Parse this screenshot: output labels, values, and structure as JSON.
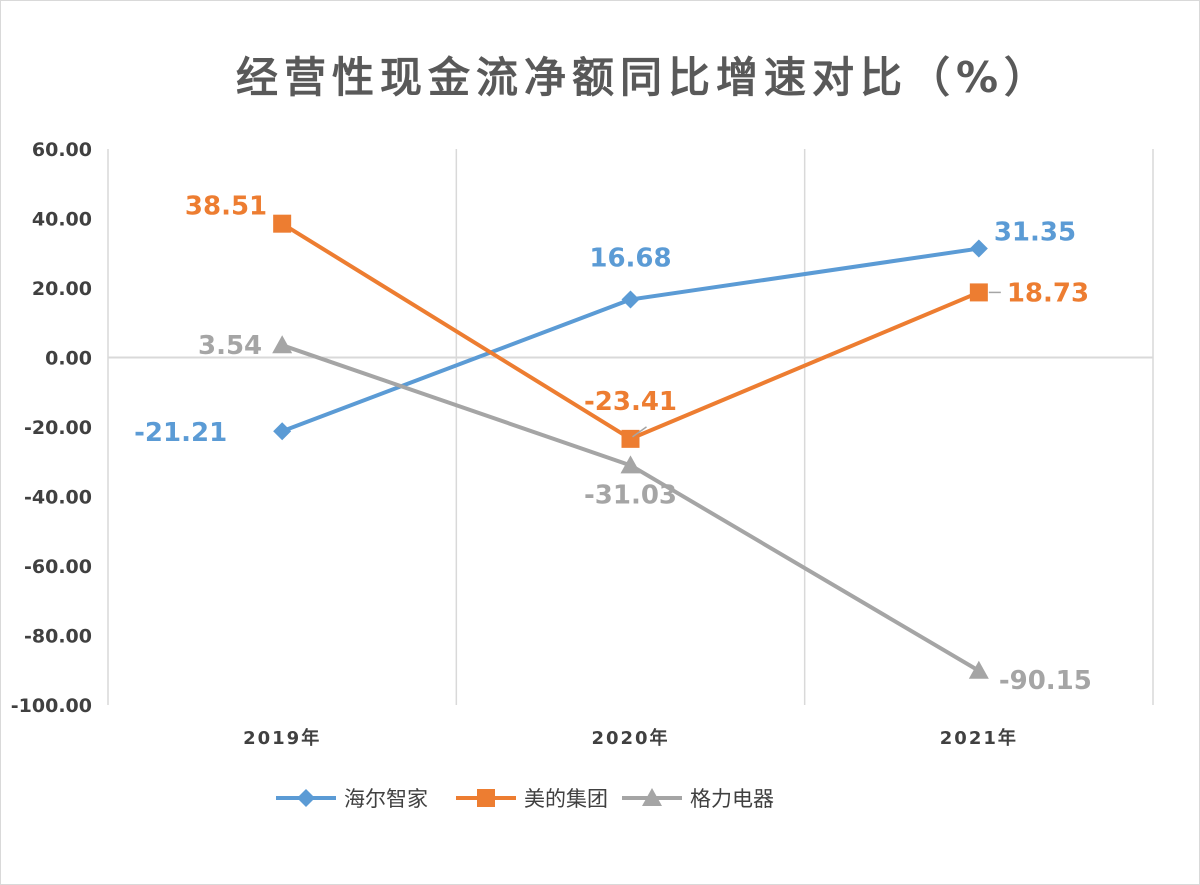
{
  "chart_data": {
    "type": "line",
    "title": "经营性现金流净额同比增速对比（%）",
    "categories": [
      "2019年",
      "2020年",
      "2021年"
    ],
    "ylim": [
      -100,
      60
    ],
    "yticks": [
      "60.00",
      "40.00",
      "20.00",
      "0.00",
      "-20.00",
      "-40.00",
      "-60.00",
      "-80.00",
      "-100.00"
    ],
    "grid": "vertical",
    "legend_position": "bottom",
    "series": [
      {
        "name": "海尔智家",
        "values": [
          -21.21,
          16.68,
          31.35
        ],
        "labels": [
          "-21.21",
          "16.68",
          "31.35"
        ],
        "color": "#5B9BD5",
        "marker": "diamond"
      },
      {
        "name": "美的集团",
        "values": [
          38.51,
          -23.41,
          18.73
        ],
        "labels": [
          "38.51",
          "-23.41",
          "18.73"
        ],
        "color": "#ED7D31",
        "marker": "square"
      },
      {
        "name": "格力电器",
        "values": [
          3.54,
          -31.03,
          -90.15
        ],
        "labels": [
          "3.54",
          "-31.03",
          "-90.15"
        ],
        "color": "#A5A5A5",
        "marker": "triangle"
      }
    ]
  }
}
